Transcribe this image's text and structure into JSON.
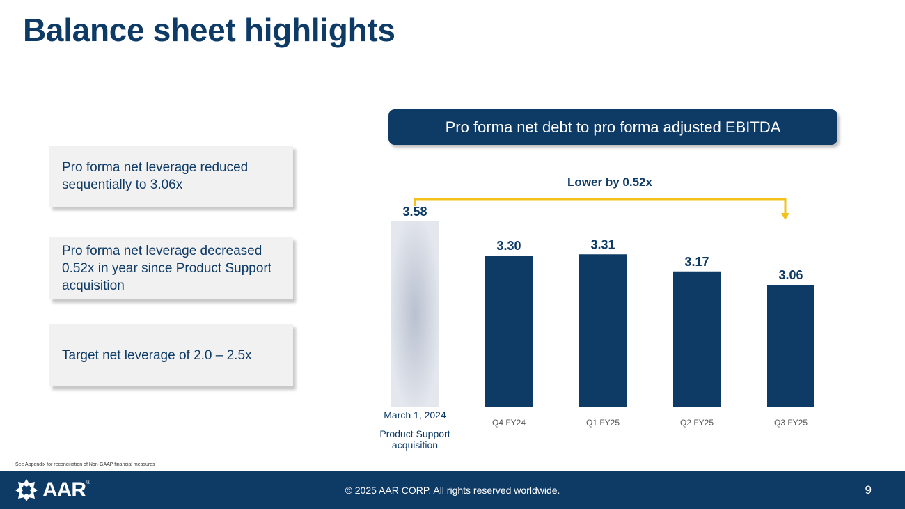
{
  "title": "Balance sheet highlights",
  "callouts": [
    "Pro forma net leverage reduced sequentially to 3.06x",
    "Pro forma net leverage decreased 0.52x in year since Product Support acquisition",
    "Target net leverage of 2.0 – 2.5x"
  ],
  "chart_header": "Pro forma net debt to pro forma adjusted EBITDA",
  "chart_data": {
    "type": "bar",
    "title": "Pro forma net debt to pro forma adjusted EBITDA",
    "categories": [
      "March 1, 2024",
      "Q4 FY24",
      "Q1 FY25",
      "Q2 FY25",
      "Q3 FY25"
    ],
    "category_sublabel": "Product Support acquisition",
    "values": [
      3.58,
      3.3,
      3.31,
      3.17,
      3.06
    ],
    "value_labels": [
      "3.58",
      "3.30",
      "3.31",
      "3.17",
      "3.06"
    ],
    "highlight_first": true,
    "colors": {
      "bar": "#0e3a66",
      "first_bar": "#c8cfdc",
      "annotation": "#f2c21b",
      "text": "#0e3a66",
      "axis": "#d0d0d0"
    },
    "annotation": "Lower by 0.52x",
    "xlabel": "",
    "ylabel": ""
  },
  "footnote": "See Appendix for reconciliation of Non-GAAP financial measures",
  "footer": {
    "copyright": "© 2025 AAR CORP. All rights reserved worldwide.",
    "page_number": "9",
    "logo": "AAR",
    "logo_mark": "®"
  }
}
